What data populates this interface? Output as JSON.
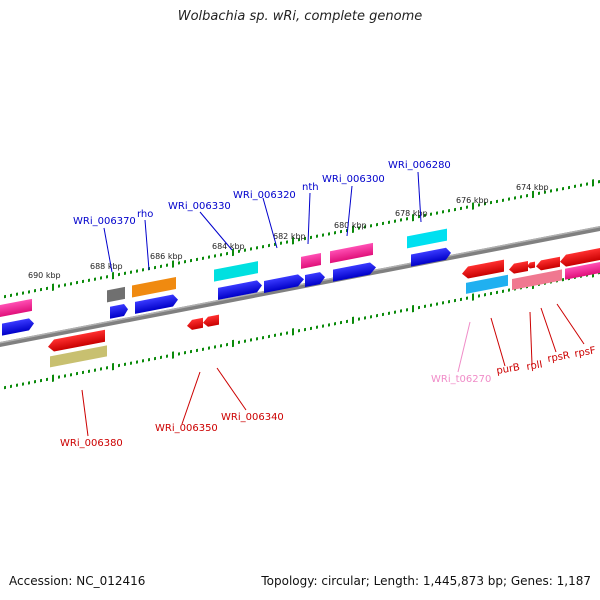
{
  "title": "Wolbachia sp. wRi, complete genome",
  "footer": {
    "accession": "Accession: NC_012416",
    "summary": "Topology: circular; Length: 1,445,873 bp; Genes: 1,187"
  },
  "colors": {
    "backbone": "#808080",
    "ticks": "#0a8a0a",
    "label_blue": "#0000cc",
    "label_red": "#cc0000",
    "label_pink": "#f08cc8"
  },
  "scale_labels": [
    "690 kbp",
    "688 kbp",
    "686 kbp",
    "684 kbp",
    "682 kbp",
    "680 kbp",
    "678 kbp",
    "676 kbp",
    "674 kbp"
  ],
  "gene_labels": [
    {
      "id": "wri006370",
      "text": "WRi_006370",
      "color": "#0000cc"
    },
    {
      "id": "rho",
      "text": "rho",
      "color": "#0000cc"
    },
    {
      "id": "wri006330",
      "text": "WRi_006330",
      "color": "#0000cc"
    },
    {
      "id": "wri006320",
      "text": "WRi_006320",
      "color": "#0000cc"
    },
    {
      "id": "nth",
      "text": "nth",
      "color": "#0000cc"
    },
    {
      "id": "wri006300",
      "text": "WRi_006300",
      "color": "#0000cc"
    },
    {
      "id": "wri006280",
      "text": "WRi_006280",
      "color": "#0000cc"
    },
    {
      "id": "wri006380",
      "text": "WRi_006380",
      "color": "#cc0000"
    },
    {
      "id": "wri006350",
      "text": "WRi_006350",
      "color": "#cc0000"
    },
    {
      "id": "wri006340",
      "text": "WRi_006340",
      "color": "#cc0000"
    },
    {
      "id": "writ06270",
      "text": "WRi_t06270",
      "color": "#f08cc8"
    },
    {
      "id": "purb",
      "text": "purB",
      "color": "#cc0000"
    },
    {
      "id": "rpli",
      "text": "rplI",
      "color": "#cc0000"
    },
    {
      "id": "rpsr",
      "text": "rpsR",
      "color": "#cc0000"
    },
    {
      "id": "rpsf",
      "text": "rpsF",
      "color": "#cc0000"
    }
  ]
}
